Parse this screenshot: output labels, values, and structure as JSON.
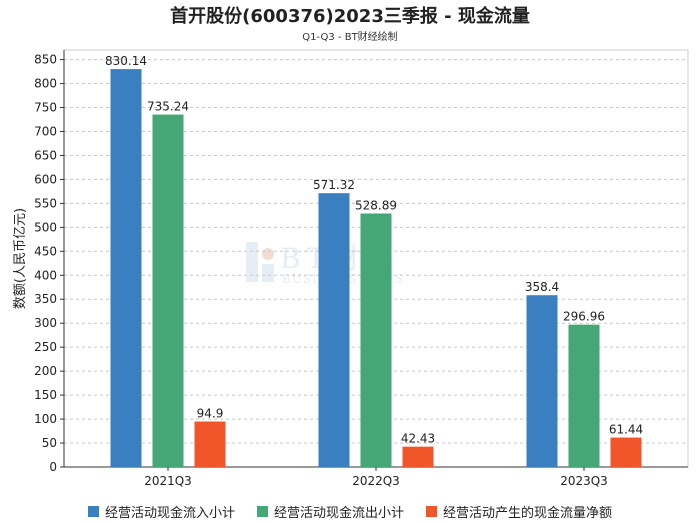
{
  "chart_data": {
    "type": "bar",
    "title": "首开股份(600376)2023三季报 - 现金流量",
    "subtitle": "Q1-Q3 - BT财经绘制",
    "ylabel": "数额(人民币亿元)",
    "xlabel": "",
    "ylim": [
      0,
      870
    ],
    "yticks": [
      0,
      50,
      100,
      150,
      200,
      250,
      300,
      350,
      400,
      450,
      500,
      550,
      600,
      650,
      700,
      750,
      800,
      850
    ],
    "categories": [
      "2021Q3",
      "2022Q3",
      "2023Q3"
    ],
    "series": [
      {
        "name": "经营活动现金流入小计",
        "color": "#3a80c1",
        "values": [
          830.14,
          571.32,
          358.4
        ],
        "labels": [
          "830.14",
          "571.32",
          "358.4"
        ]
      },
      {
        "name": "经营活动现金流出小计",
        "color": "#45a776",
        "values": [
          735.24,
          528.89,
          296.96
        ],
        "labels": [
          "735.24",
          "528.89",
          "296.96"
        ]
      },
      {
        "name": "经营活动产生的现金流量净额",
        "color": "#f0562a",
        "values": [
          94.9,
          42.43,
          61.44
        ],
        "labels": [
          "94.9",
          "42.43",
          "61.44"
        ]
      }
    ],
    "watermark": {
      "brand": "BT财经",
      "tagline": "BUSINESSTIMES"
    },
    "grid": true,
    "legend": "bottom"
  }
}
